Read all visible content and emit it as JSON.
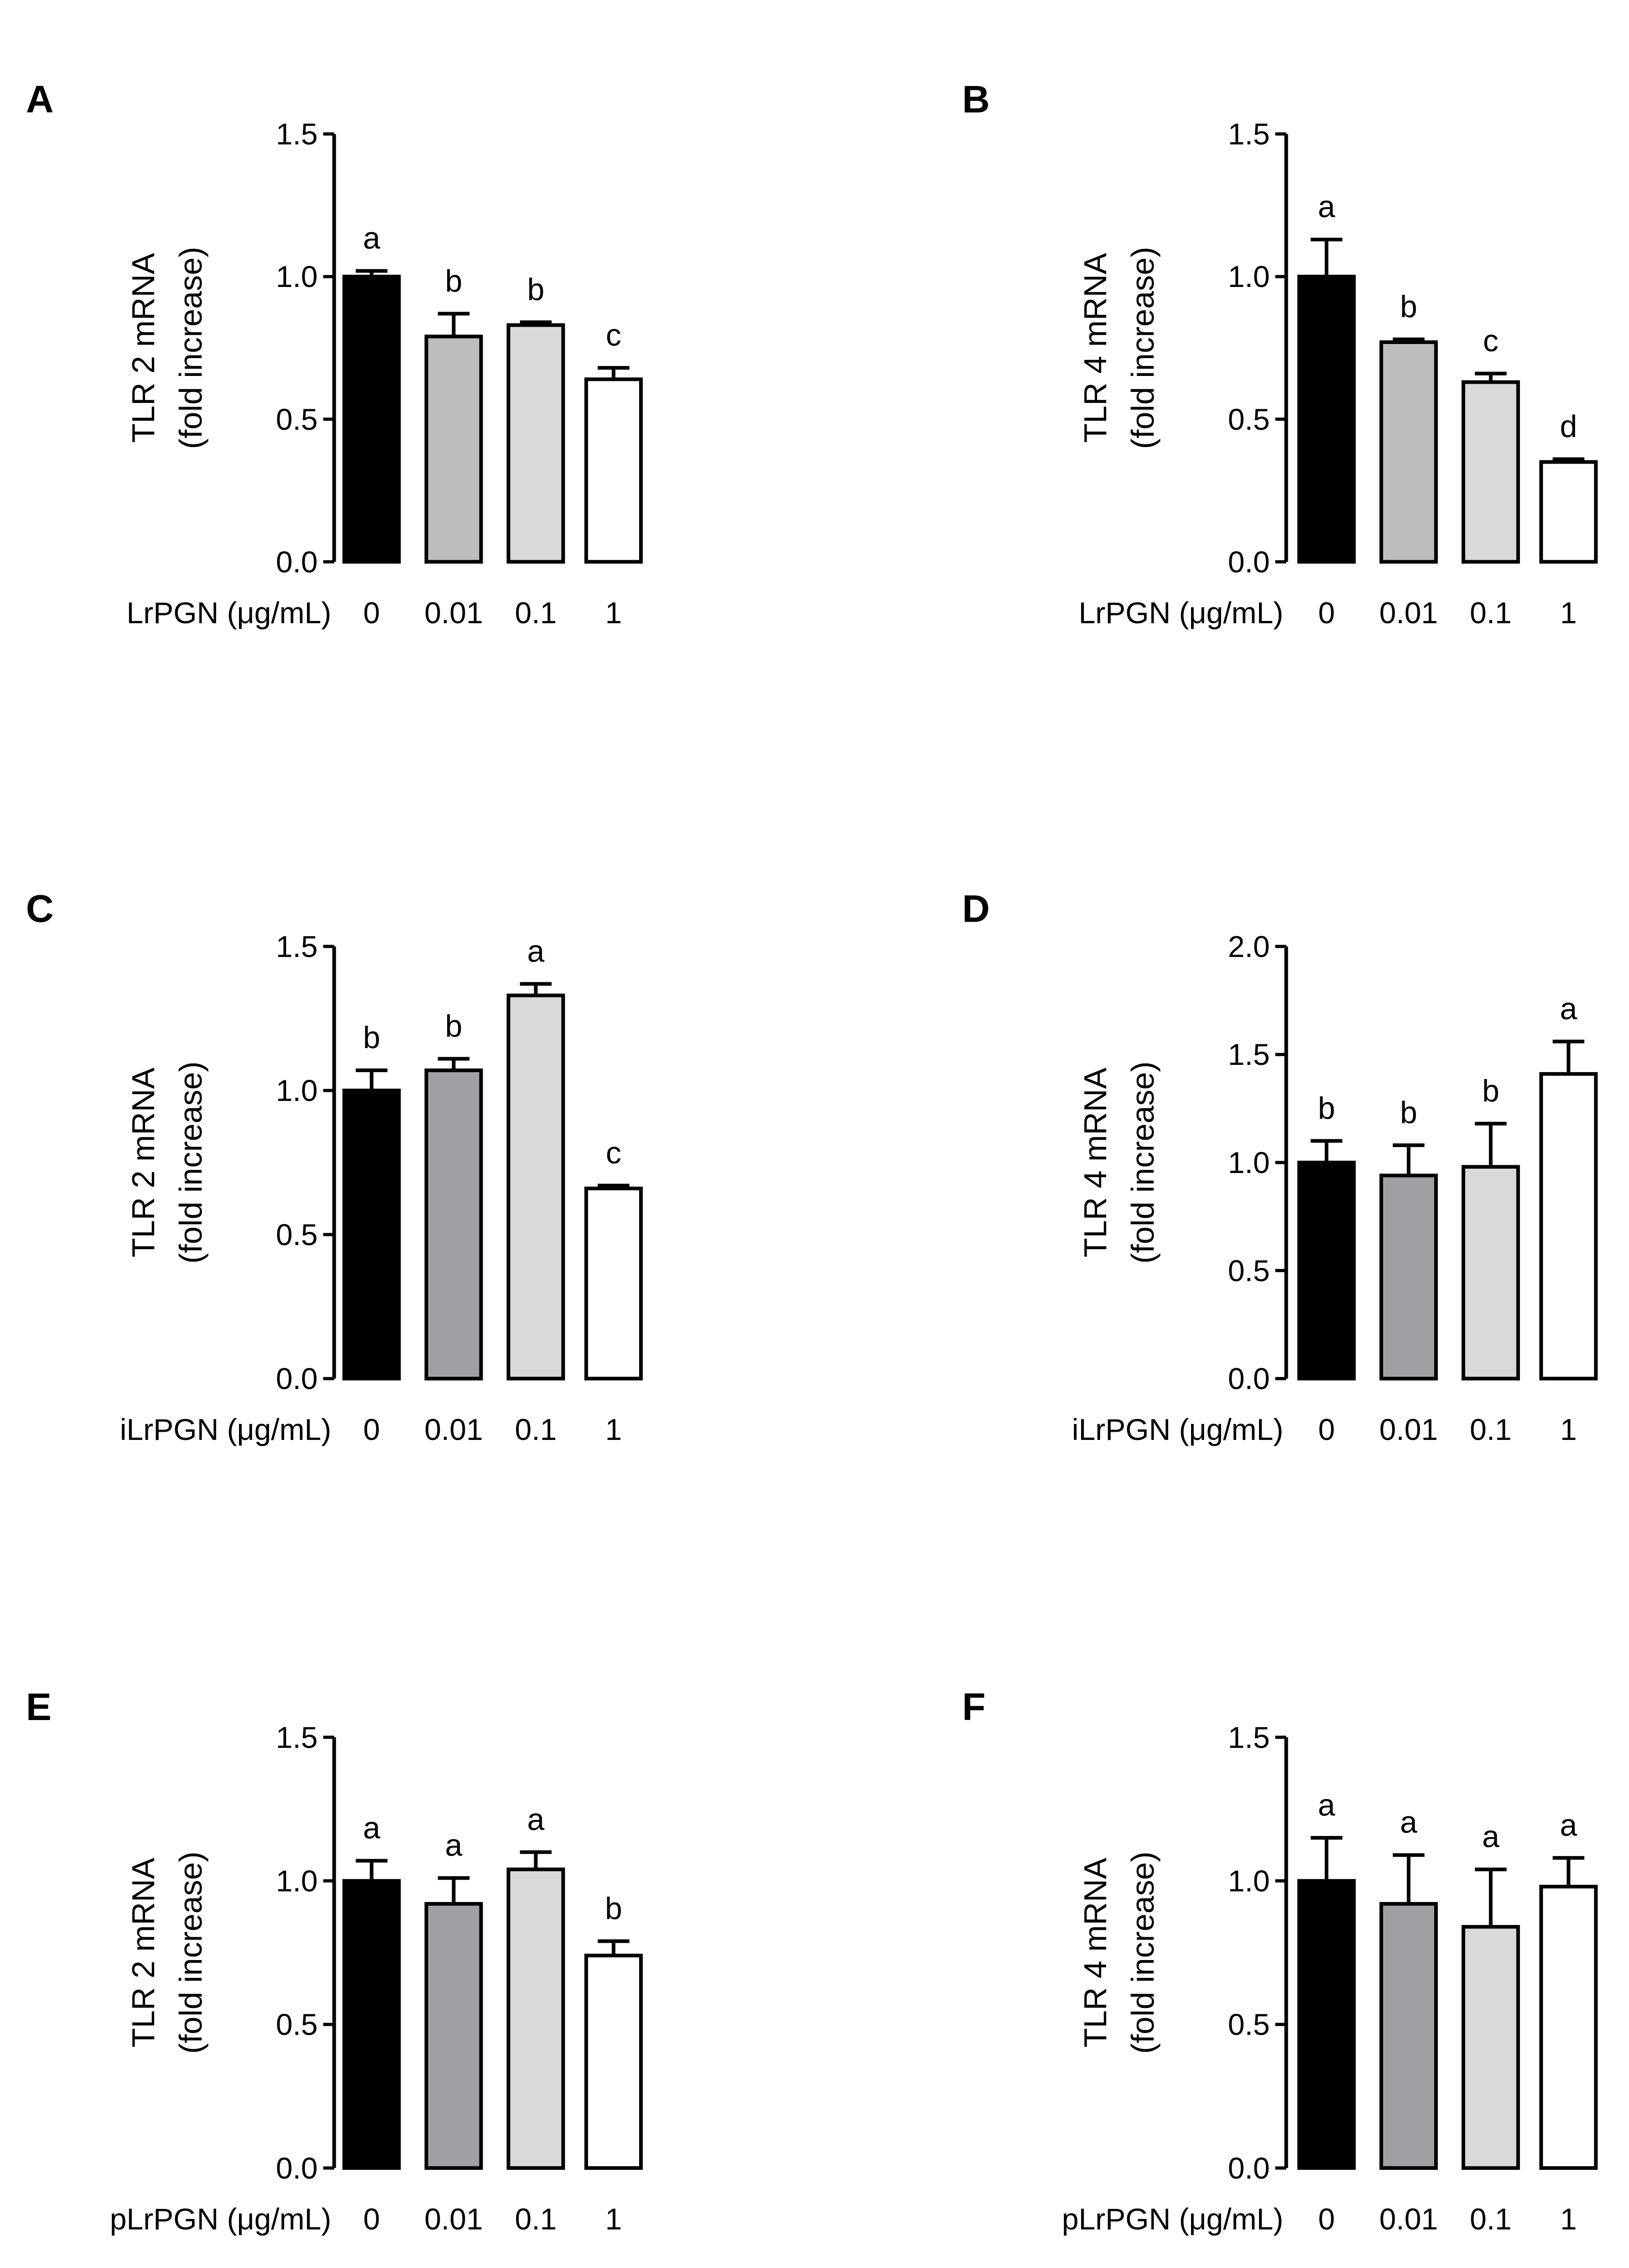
{
  "chart_data": [
    {
      "panel": "A",
      "type": "bar",
      "ylabel": "TLR 2 mRNA",
      "ylabel_sub": "(fold increase)",
      "xlabel": "LrPGN (μg/mL)",
      "categories": [
        "0",
        "0.01",
        "0.1",
        "1"
      ],
      "values": [
        1.0,
        0.79,
        0.83,
        0.64
      ],
      "errors": [
        0.02,
        0.08,
        0.01,
        0.04
      ],
      "significance": [
        "a",
        "b",
        "b",
        "c"
      ],
      "colors": [
        "#000000",
        "#bdbdbd",
        "#d9d9d9",
        "#ffffff"
      ],
      "ylim": [
        0,
        1.5
      ],
      "yticks": [
        "0.0",
        "0.5",
        "1.0",
        "1.5"
      ],
      "ytick_values": [
        0,
        0.5,
        1.0,
        1.5
      ]
    },
    {
      "panel": "B",
      "type": "bar",
      "ylabel": "TLR 4 mRNA",
      "ylabel_sub": "(fold increase)",
      "xlabel": "LrPGN (μg/mL)",
      "categories": [
        "0",
        "0.01",
        "0.1",
        "1"
      ],
      "values": [
        1.0,
        0.77,
        0.63,
        0.35
      ],
      "errors": [
        0.13,
        0.01,
        0.03,
        0.01
      ],
      "significance": [
        "a",
        "b",
        "c",
        "d"
      ],
      "colors": [
        "#000000",
        "#bdbdbd",
        "#d9d9d9",
        "#ffffff"
      ],
      "ylim": [
        0,
        1.5
      ],
      "yticks": [
        "0.0",
        "0.5",
        "1.0",
        "1.5"
      ],
      "ytick_values": [
        0,
        0.5,
        1.0,
        1.5
      ]
    },
    {
      "panel": "C",
      "type": "bar",
      "ylabel": "TLR 2 mRNA",
      "ylabel_sub": "(fold increase)",
      "xlabel": "iLrPGN (μg/mL)",
      "categories": [
        "0",
        "0.01",
        "0.1",
        "1"
      ],
      "values": [
        1.0,
        1.07,
        1.33,
        0.66
      ],
      "errors": [
        0.07,
        0.04,
        0.04,
        0.01
      ],
      "significance": [
        "b",
        "b",
        "a",
        "c"
      ],
      "colors": [
        "#000000",
        "#a0a0a4",
        "#d9d9d9",
        "#ffffff"
      ],
      "ylim": [
        0,
        1.5
      ],
      "yticks": [
        "0.0",
        "0.5",
        "1.0",
        "1.5"
      ],
      "ytick_values": [
        0,
        0.5,
        1.0,
        1.5
      ]
    },
    {
      "panel": "D",
      "type": "bar",
      "ylabel": "TLR 4 mRNA",
      "ylabel_sub": "(fold increase)",
      "xlabel": "iLrPGN (μg/mL)",
      "categories": [
        "0",
        "0.01",
        "0.1",
        "1"
      ],
      "values": [
        1.0,
        0.94,
        0.98,
        1.41
      ],
      "errors": [
        0.1,
        0.14,
        0.2,
        0.15
      ],
      "significance": [
        "b",
        "b",
        "b",
        "a"
      ],
      "colors": [
        "#000000",
        "#a0a0a4",
        "#d9d9d9",
        "#ffffff"
      ],
      "ylim": [
        0,
        2.0
      ],
      "yticks": [
        "0.0",
        "0.5",
        "1.0",
        "1.5",
        "2.0"
      ],
      "ytick_values": [
        0,
        0.5,
        1.0,
        1.5,
        2.0
      ]
    },
    {
      "panel": "E",
      "type": "bar",
      "ylabel": "TLR 2 mRNA",
      "ylabel_sub": "(fold increase)",
      "xlabel": "pLrPGN (μg/mL)",
      "categories": [
        "0",
        "0.01",
        "0.1",
        "1"
      ],
      "values": [
        1.0,
        0.92,
        1.04,
        0.74
      ],
      "errors": [
        0.07,
        0.09,
        0.06,
        0.05
      ],
      "significance": [
        "a",
        "a",
        "a",
        "b"
      ],
      "colors": [
        "#000000",
        "#a0a0a4",
        "#d9d9d9",
        "#ffffff"
      ],
      "ylim": [
        0,
        1.5
      ],
      "yticks": [
        "0.0",
        "0.5",
        "1.0",
        "1.5"
      ],
      "ytick_values": [
        0,
        0.5,
        1.0,
        1.5
      ]
    },
    {
      "panel": "F",
      "type": "bar",
      "ylabel": "TLR 4 mRNA",
      "ylabel_sub": "(fold increase)",
      "xlabel": "pLrPGN (μg/mL)",
      "categories": [
        "0",
        "0.01",
        "0.1",
        "1"
      ],
      "values": [
        1.0,
        0.92,
        0.84,
        0.98
      ],
      "errors": [
        0.15,
        0.17,
        0.2,
        0.1
      ],
      "significance": [
        "a",
        "a",
        "a",
        "a"
      ],
      "colors": [
        "#000000",
        "#a0a0a4",
        "#d9d9d9",
        "#ffffff"
      ],
      "ylim": [
        0,
        1.5
      ],
      "yticks": [
        "0.0",
        "0.5",
        "1.0",
        "1.5"
      ],
      "ytick_values": [
        0,
        0.5,
        1.0,
        1.5
      ]
    }
  ]
}
